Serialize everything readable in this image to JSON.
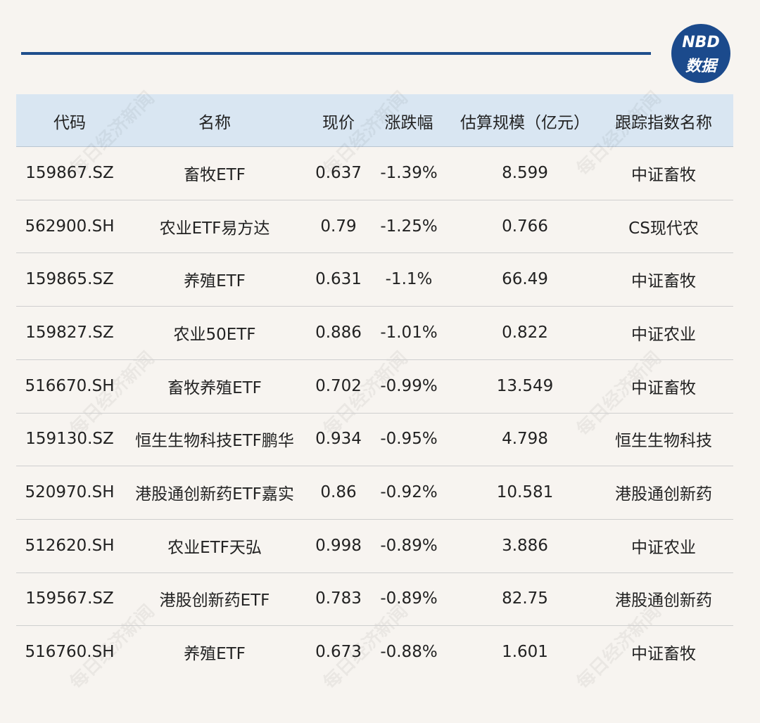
{
  "logo": {
    "top": "NBD",
    "bottom": "数据"
  },
  "watermark": "每日经济新闻",
  "table": {
    "header": [
      "代码",
      "名称",
      "现价",
      "涨跌幅",
      "估算规模（亿元）",
      "跟踪指数名称"
    ],
    "rows": [
      [
        "159867.SZ",
        "畜牧ETF",
        "0.637",
        "-1.39%",
        "8.599",
        "中证畜牧"
      ],
      [
        "562900.SH",
        "农业ETF易方达",
        "0.79",
        "-1.25%",
        "0.766",
        "CS现代农"
      ],
      [
        "159865.SZ",
        "养殖ETF",
        "0.631",
        "-1.1%",
        "66.49",
        "中证畜牧"
      ],
      [
        "159827.SZ",
        "农业50ETF",
        "0.886",
        "-1.01%",
        "0.822",
        "中证农业"
      ],
      [
        "516670.SH",
        "畜牧养殖ETF",
        "0.702",
        "-0.99%",
        "13.549",
        "中证畜牧"
      ],
      [
        "159130.SZ",
        "恒生生物科技ETF鹏华",
        "0.934",
        "-0.95%",
        "4.798",
        "恒生生物科技"
      ],
      [
        "520970.SH",
        "港股通创新药ETF嘉实",
        "0.86",
        "-0.92%",
        "10.581",
        "港股通创新药"
      ],
      [
        "512620.SH",
        "农业ETF天弘",
        "0.998",
        "-0.89%",
        "3.886",
        "中证农业"
      ],
      [
        "159567.SZ",
        "港股创新药ETF",
        "0.783",
        "-0.89%",
        "82.75",
        "港股通创新药"
      ],
      [
        "516760.SH",
        "养殖ETF",
        "0.673",
        "-0.88%",
        "1.601",
        "中证畜牧"
      ]
    ]
  }
}
